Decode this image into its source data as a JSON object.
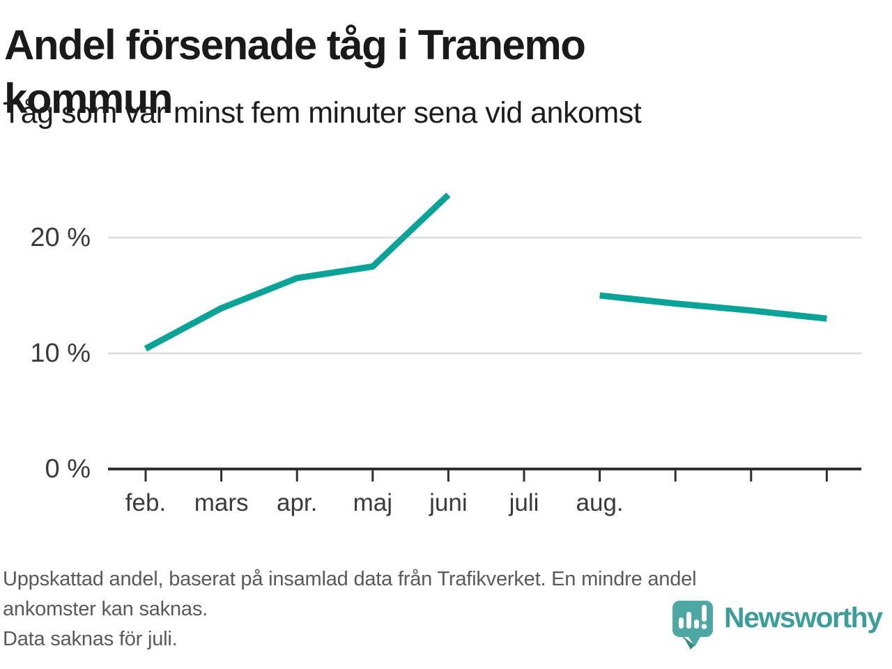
{
  "header": {
    "title": "Andel försenade tåg i Tranemo kommun",
    "subtitle": "Tåg som var minst fem minuter sena vid ankomst"
  },
  "chart_data": {
    "type": "line",
    "title": "Andel försenade tåg i Tranemo kommun",
    "subtitle": "Tåg som var minst fem minuter sena vid ankomst",
    "unit": "%",
    "x_tick_labels": [
      "feb.",
      "mars",
      "apr.",
      "maj",
      "juni",
      "juli",
      "aug.",
      "",
      "",
      ""
    ],
    "series": [
      {
        "name": "Andel försenade tåg",
        "color": "#0ba298",
        "values": [
          10.4,
          13.9,
          16.5,
          17.5,
          23.7,
          null,
          15.0,
          14.3,
          13.7,
          13.0
        ]
      }
    ],
    "missing_data_x": "juli",
    "yticks": [
      {
        "value": 0,
        "label": "0 %"
      },
      {
        "value": 10,
        "label": "10 %"
      },
      {
        "value": 20,
        "label": "20 %"
      }
    ],
    "ylim": [
      0,
      25
    ],
    "grid": "horizontal-only",
    "legend": false
  },
  "footer": {
    "lines": [
      "Uppskattad andel, baserat på insamlad data från Trafikverket. En mindre andel",
      "ankomster kan saknas.",
      "Data saknas för juli."
    ]
  },
  "logo": {
    "name": "Newsworthy",
    "pin_color": "#4da7a3",
    "pin_shadow_color": "#3c8a86",
    "text_color": "#3d9d9a"
  },
  "colors": {
    "line": "#0ba298",
    "grid": "#dcdcdc",
    "axis": "#2f2f2f",
    "title_text": "#1a1a1a",
    "footer_text": "#595959"
  }
}
